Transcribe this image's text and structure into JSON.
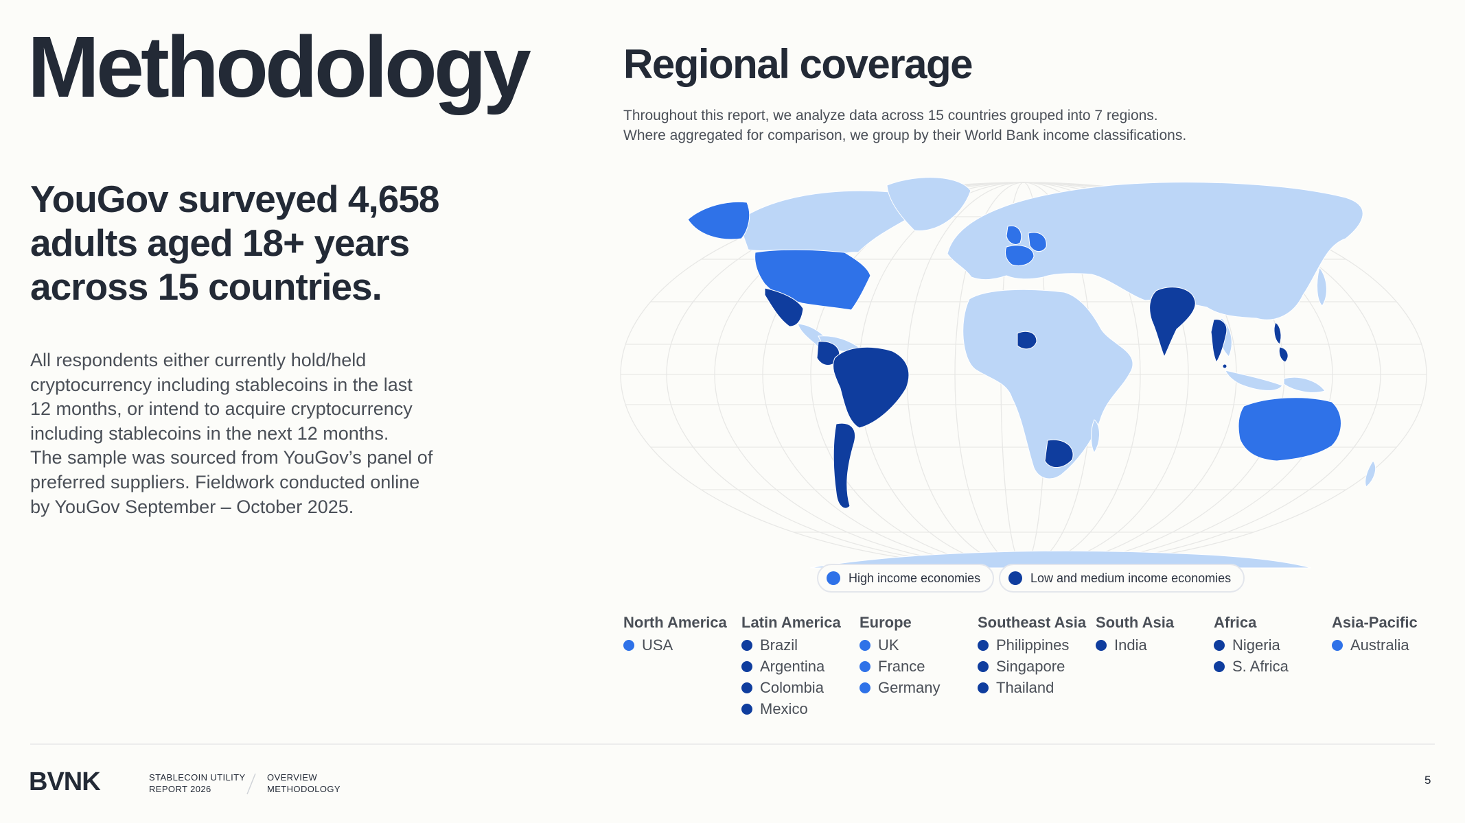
{
  "page": {
    "title": "Methodology",
    "headline_lines": [
      "YouGov surveyed 4,658",
      "adults aged 18+ years",
      "across 15 countries."
    ],
    "body_lines": [
      "All respondents either currently hold/held",
      "cryptocurrency including stablecoins in the last",
      "12 months, or intend to acquire cryptocurrency",
      "including stablecoins in the next 12 months.",
      "The sample was sourced from YouGov’s panel of",
      "preferred suppliers. Fieldwork conducted online",
      "by YouGov September – October 2025."
    ]
  },
  "regional": {
    "title": "Regional coverage",
    "description_lines": [
      "Throughout this report, we analyze data across 15 countries grouped into 7 regions.",
      "Where aggregated for comparison, we group by their World Bank income classifications."
    ]
  },
  "legend": {
    "high": {
      "label": "High income economies",
      "color": "#2f72e8"
    },
    "low": {
      "label": "Low and medium income economies",
      "color": "#0f3d9e"
    },
    "other_land_color": "#bcd6f7"
  },
  "regions": [
    {
      "name": "North America",
      "countries": [
        {
          "name": "USA",
          "income": "high"
        }
      ]
    },
    {
      "name": "Latin America",
      "countries": [
        {
          "name": "Brazil",
          "income": "low"
        },
        {
          "name": "Argentina",
          "income": "low"
        },
        {
          "name": "Colombia",
          "income": "low"
        },
        {
          "name": "Mexico",
          "income": "low"
        }
      ]
    },
    {
      "name": "Europe",
      "countries": [
        {
          "name": "UK",
          "income": "high"
        },
        {
          "name": "France",
          "income": "high"
        },
        {
          "name": "Germany",
          "income": "high"
        }
      ]
    },
    {
      "name": "Southeast Asia",
      "countries": [
        {
          "name": "Philippines",
          "income": "low"
        },
        {
          "name": "Singapore",
          "income": "low"
        },
        {
          "name": "Thailand",
          "income": "low"
        }
      ]
    },
    {
      "name": "South Asia",
      "countries": [
        {
          "name": "India",
          "income": "low"
        }
      ]
    },
    {
      "name": "Africa",
      "countries": [
        {
          "name": "Nigeria",
          "income": "low"
        },
        {
          "name": "S. Africa",
          "income": "low"
        }
      ]
    },
    {
      "name": "Asia-Pacific",
      "countries": [
        {
          "name": "Australia",
          "income": "high"
        }
      ]
    }
  ],
  "footer": {
    "logo": "BVNK",
    "report_lines": [
      "STABLECOIN UTILITY",
      "REPORT 2026"
    ],
    "section_lines": [
      "OVERVIEW",
      "METHODOLOGY"
    ],
    "page_number": "5"
  }
}
